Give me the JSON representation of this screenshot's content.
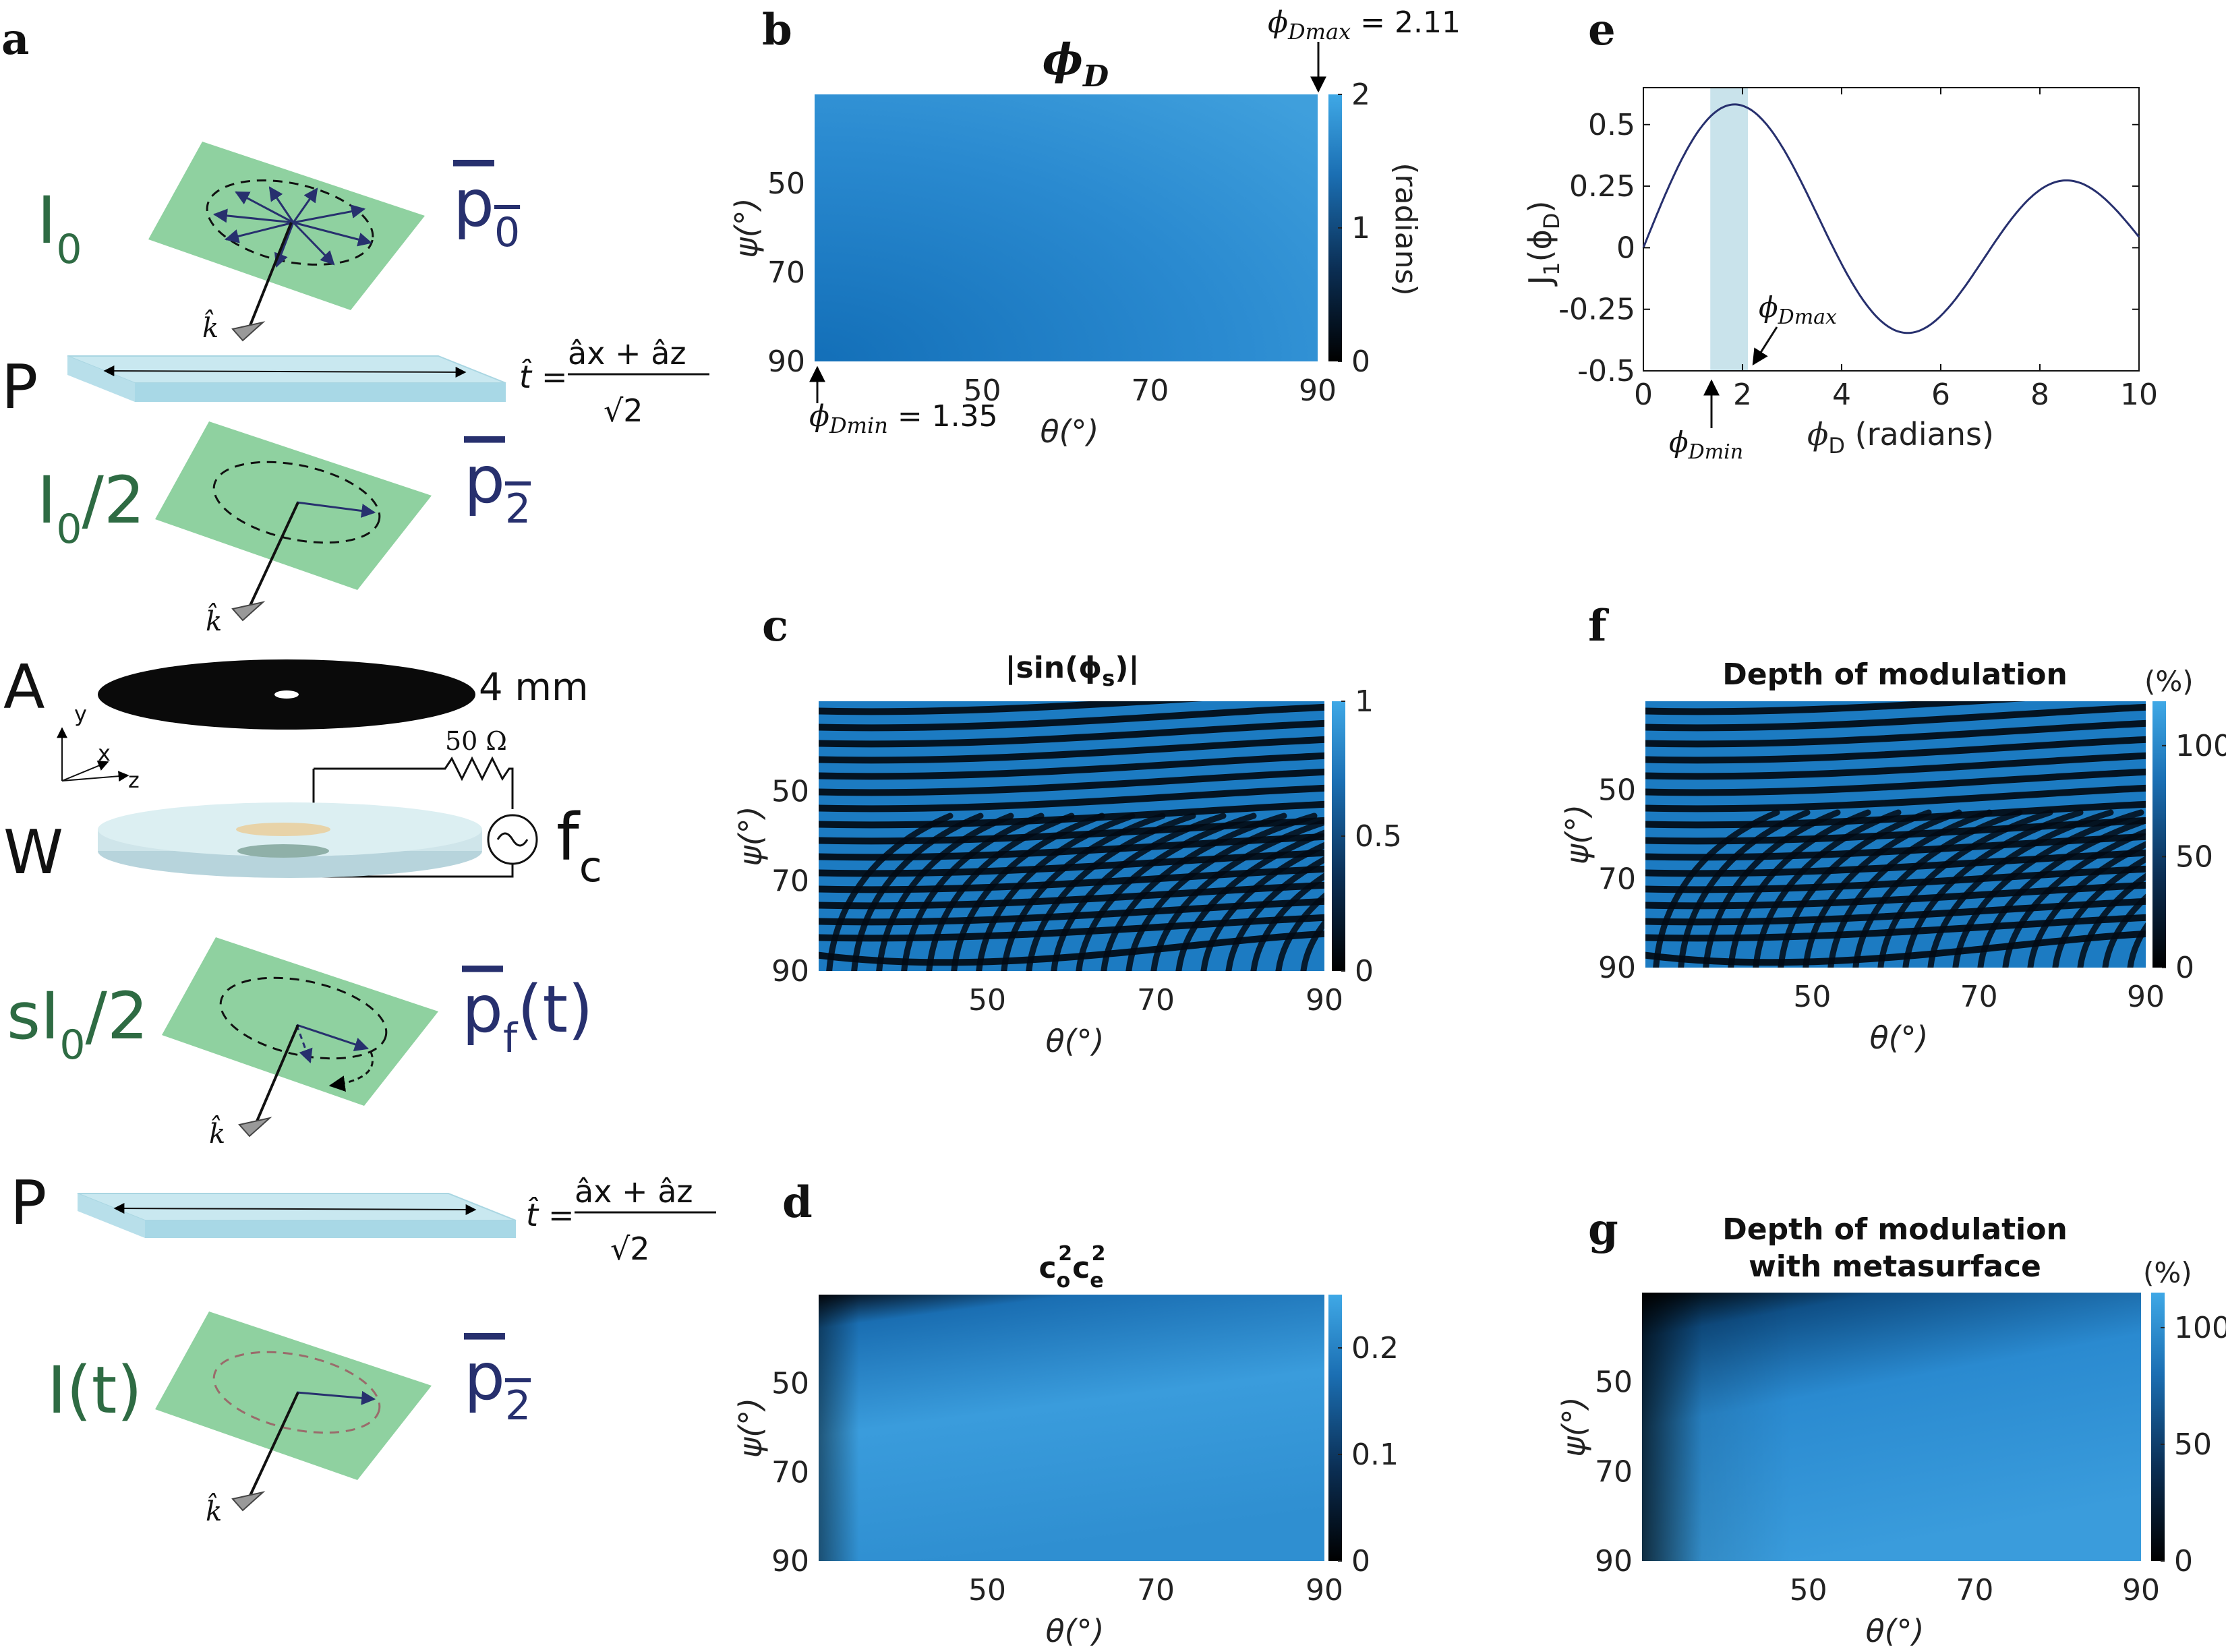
{
  "schematic": {
    "k_label": "k̂",
    "stage1": {
      "intensity": "I",
      "intensity_sub": "0",
      "polarization": "p",
      "polarization_sub": "0"
    },
    "stage2": {
      "intensity": "I",
      "intensity_sub": "0",
      "intensity_suffix": "/2",
      "polarization": "p",
      "polarization_sub": "2"
    },
    "stage3": {
      "intensity": "sI",
      "intensity_sub": "0",
      "intensity_suffix": "/2",
      "polarization": "p",
      "polarization_sub": "f",
      "polarization_suffix": "(t)"
    },
    "stage4": {
      "intensity": "I(t)",
      "polarization": "p",
      "polarization_sub": "2"
    },
    "polarizer_label": "P",
    "t_hat": "t̂",
    "equals": "=",
    "t_numerator": "âx + âz",
    "t_denominator": "√2",
    "aperture_label": "A",
    "aperture_size": "4 mm",
    "wafer_label": "W",
    "resistor": "50 Ω",
    "freq_label": "f",
    "freq_sub": "c",
    "axis_x": "x",
    "axis_y": "y",
    "axis_z": "z"
  },
  "panels": {
    "a": {
      "letter": "a"
    },
    "b": {
      "letter": "b",
      "title": "ϕ",
      "title_sub": "D",
      "colorbar_label": "(radians)",
      "min_symbol": "ϕ",
      "min_sub": "Dmin",
      "min_value": " = 1.35",
      "max_symbol": "ϕ",
      "max_sub": "Dmax",
      "max_value": " = 2.11"
    },
    "c": {
      "letter": "c",
      "title": "|sin(ϕ",
      "title_sub": "s",
      "title_suffix": ")|"
    },
    "d": {
      "letter": "d",
      "title_c1": "c",
      "title_c1_sub": "o",
      "title_sup": "2",
      "title_c2": "c",
      "title_c2_sub": "e"
    },
    "e": {
      "letter": "e",
      "ylabel": "J",
      "ylabel_sub": "1",
      "ylabel_paren": "(ϕ",
      "ylabel_paren_sub": "D",
      "ylabel_close": ")",
      "xlabel_symbol": "ϕ",
      "xlabel_sub": "D",
      "xlabel_unit": " (radians)",
      "min_symbol": "ϕ",
      "min_sub": "Dmin",
      "max_symbol": "ϕ",
      "max_sub": "Dmax"
    },
    "f": {
      "letter": "f",
      "title": "Depth of modulation",
      "unit": "(%)"
    },
    "g": {
      "letter": "g",
      "title_line1": "Depth of modulation",
      "title_line2": "with metasurface",
      "unit": "(%)"
    }
  },
  "chart_data": [
    {
      "panel": "b",
      "type": "heatmap",
      "xlabel": "θ(°)",
      "ylabel": "ψ(°)",
      "x_ticks": [
        50,
        70,
        90
      ],
      "y_ticks": [
        50,
        70,
        90
      ],
      "xlim": [
        30,
        90
      ],
      "ylim": [
        30,
        90
      ],
      "colorbar_ticks": [
        0,
        1,
        2
      ],
      "colorbar_tick_labels": [
        "0",
        "1",
        "2"
      ],
      "colorbar_label": "(radians)",
      "colormap": [
        "#000000",
        "#0b2f55",
        "#1b6fb3",
        "#3fa8e6"
      ],
      "value_min": 1.35,
      "value_max": 2.11
    },
    {
      "panel": "c",
      "type": "heatmap",
      "title": "|sin(ϕs)|",
      "xlabel": "θ(°)",
      "ylabel": "ψ(°)",
      "x_ticks": [
        50,
        70,
        90
      ],
      "y_ticks": [
        50,
        70,
        90
      ],
      "xlim": [
        30,
        90
      ],
      "ylim": [
        30,
        90
      ],
      "colorbar_ticks": [
        0,
        0.5,
        1
      ],
      "colorbar_tick_labels": [
        "0",
        "0.5",
        "1"
      ],
      "colormap": [
        "#000000",
        "#0b2f55",
        "#1b6fb3",
        "#3fa8e6"
      ]
    },
    {
      "panel": "d",
      "type": "heatmap",
      "title": "co²ce²",
      "xlabel": "θ(°)",
      "ylabel": "ψ(°)",
      "x_ticks": [
        50,
        70,
        90
      ],
      "y_ticks": [
        50,
        70,
        90
      ],
      "xlim": [
        30,
        90
      ],
      "ylim": [
        30,
        90
      ],
      "colorbar_ticks": [
        0,
        0.1,
        0.2
      ],
      "colorbar_tick_labels": [
        "0",
        "0.1",
        "0.2"
      ],
      "colorbar_max": 0.25,
      "colormap": [
        "#000000",
        "#0b2f55",
        "#1b6fb3",
        "#3fa8e6"
      ]
    },
    {
      "panel": "e",
      "type": "line",
      "xlabel": "ϕD (radians)",
      "ylabel": "J1(ϕD)",
      "xlim": [
        0,
        10
      ],
      "ylim": [
        -0.5,
        0.65
      ],
      "x_ticks": [
        0,
        2,
        4,
        6,
        8,
        10
      ],
      "y_ticks": [
        -0.5,
        -0.25,
        0,
        0.25,
        0.5
      ],
      "y_tick_labels": [
        "-0.5",
        "-0.25",
        "0",
        "0.25",
        "0.5"
      ],
      "series": [
        {
          "function": "besselj1",
          "x_range": [
            0,
            10
          ],
          "color": "#27306e"
        }
      ],
      "shaded_band": [
        1.35,
        2.11
      ],
      "band_color": "#c9e3eb"
    },
    {
      "panel": "f",
      "type": "heatmap",
      "title": "Depth of modulation",
      "xlabel": "θ(°)",
      "ylabel": "ψ(°)",
      "x_ticks": [
        50,
        70,
        90
      ],
      "y_ticks": [
        50,
        70,
        90
      ],
      "xlim": [
        30,
        90
      ],
      "ylim": [
        30,
        90
      ],
      "colorbar_ticks": [
        0,
        50,
        100
      ],
      "colorbar_tick_labels": [
        "0",
        "50",
        "100"
      ],
      "colorbar_max": 120,
      "colorbar_unit": "(%)",
      "colormap": [
        "#000000",
        "#0b2f55",
        "#1b6fb3",
        "#3fa8e6"
      ]
    },
    {
      "panel": "g",
      "type": "heatmap",
      "title": "Depth of modulation with metasurface",
      "xlabel": "θ(°)",
      "ylabel": "ψ(°)",
      "x_ticks": [
        50,
        70,
        90
      ],
      "y_ticks": [
        50,
        70,
        90
      ],
      "xlim": [
        30,
        90
      ],
      "ylim": [
        30,
        90
      ],
      "colorbar_ticks": [
        0,
        50,
        100
      ],
      "colorbar_tick_labels": [
        "0",
        "50",
        "100"
      ],
      "colorbar_max": 115,
      "colorbar_unit": "(%)",
      "colormap": [
        "#000000",
        "#0b2f55",
        "#1b6fb3",
        "#3fa8e6"
      ]
    }
  ]
}
